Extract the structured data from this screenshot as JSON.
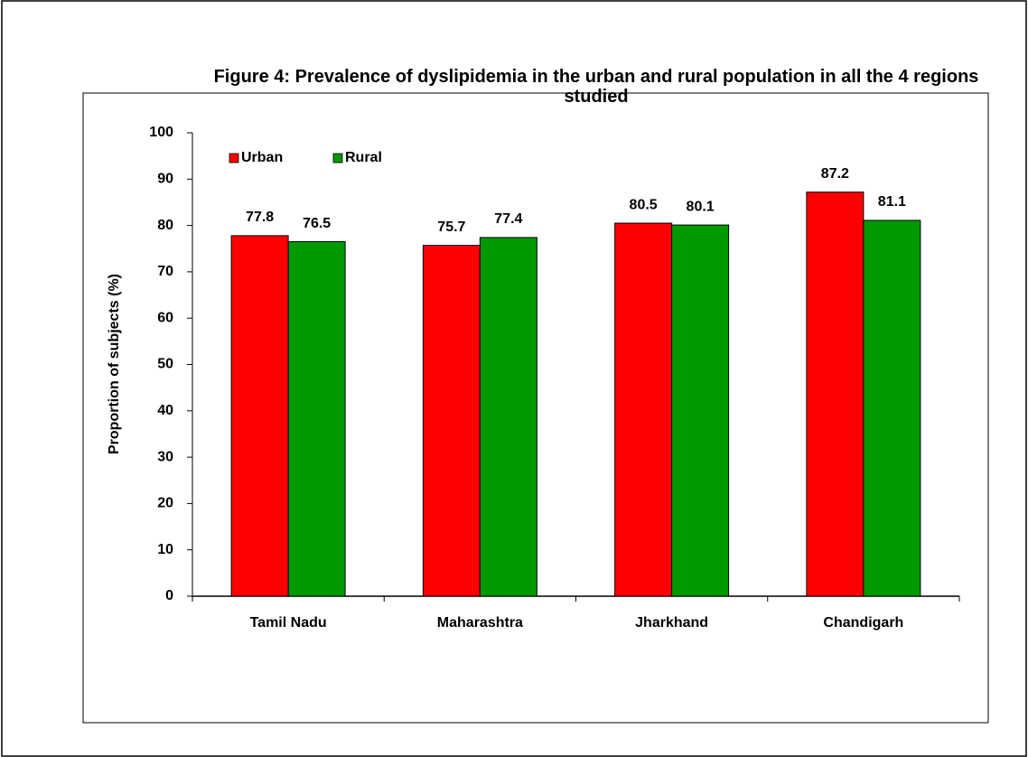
{
  "chart_data": {
    "type": "bar",
    "title": "Figure 4: Prevalence of dyslipidemia in the urban and rural population in all the 4 regions studied",
    "y_label": "Proportion of subjects (%)",
    "categories": [
      "Tamil Nadu",
      "Maharashtra",
      "Jharkhand",
      "Chandigarh"
    ],
    "series": [
      {
        "name": "Urban",
        "color": "#ff0000",
        "values": [
          77.8,
          75.7,
          80.5,
          87.2
        ]
      },
      {
        "name": "Rural",
        "color": "#009900",
        "values": [
          76.5,
          77.4,
          80.1,
          81.1
        ]
      }
    ],
    "ylim": [
      0,
      100
    ],
    "yticks": [
      0,
      10,
      20,
      30,
      40,
      50,
      60,
      70,
      80,
      90,
      100
    ],
    "legend": "upper left"
  }
}
